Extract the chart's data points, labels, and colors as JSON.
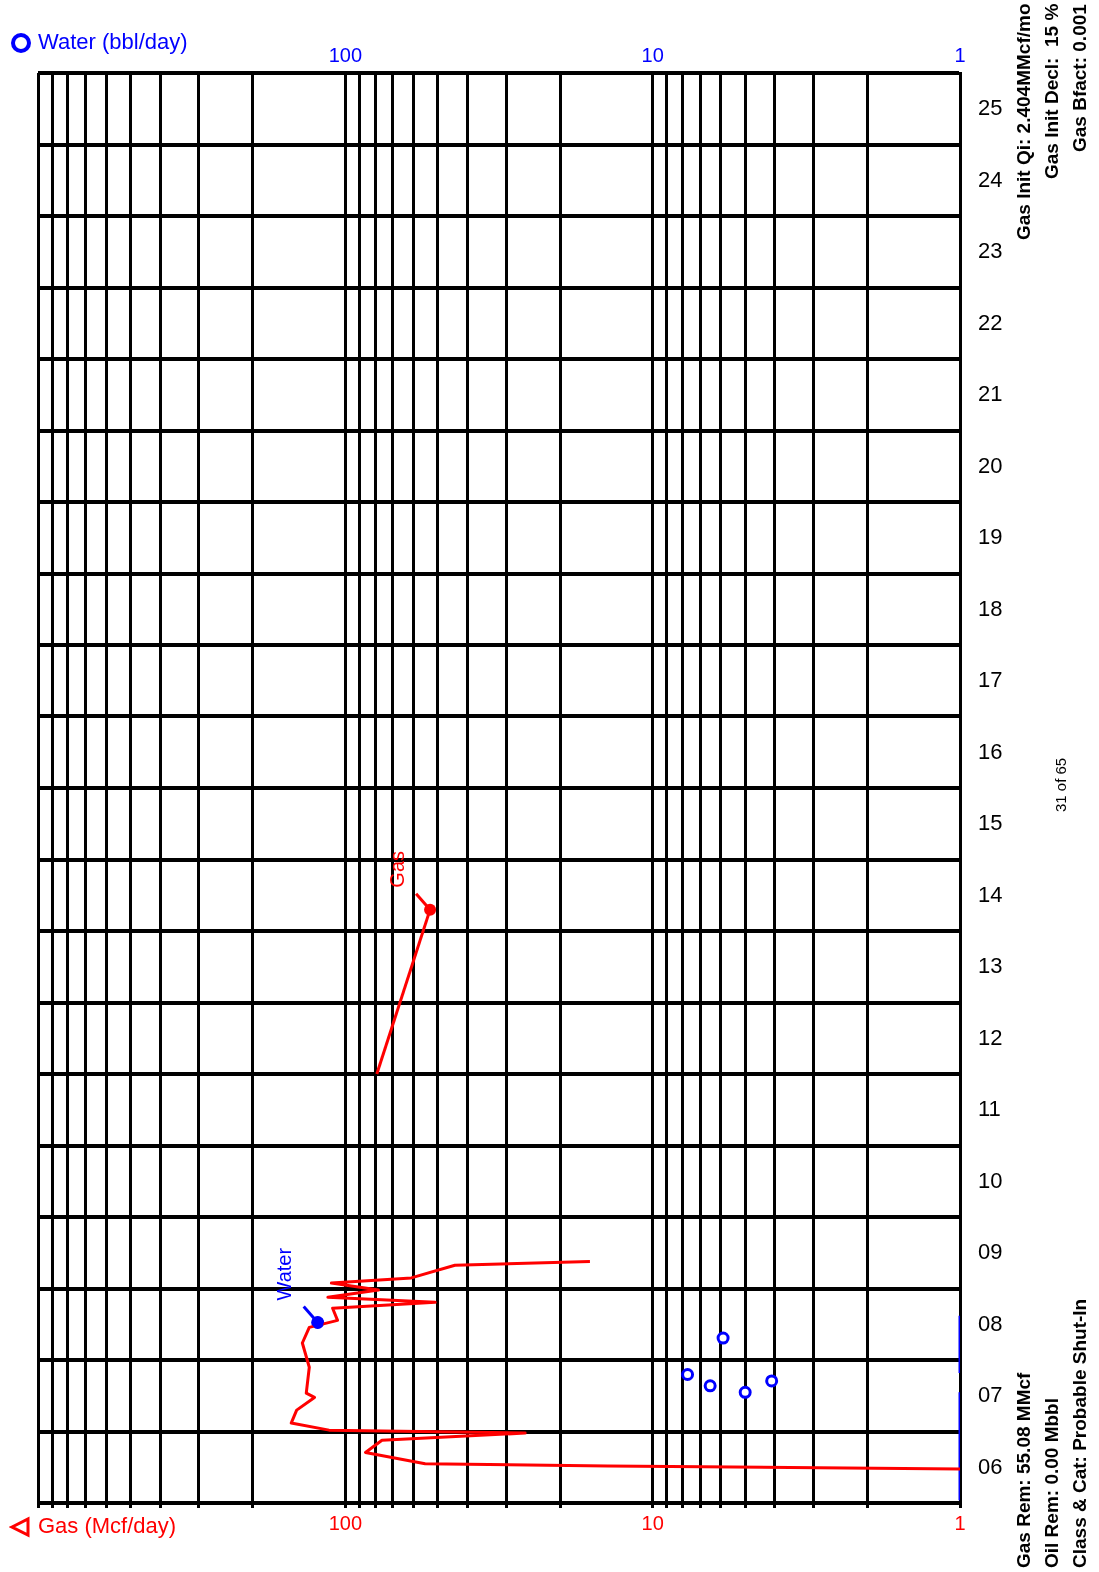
{
  "chart_data": {
    "type": "line",
    "orientation": "horizontal",
    "xlabel": "Gas (Mcf/day)",
    "x2label": "Water (bbl/day)",
    "ylim": [
      "2006-01-01",
      "2026-01-01"
    ],
    "yticks": [
      {
        "value": "2006-01-01",
        "label": null
      },
      {
        "value": "2006-07-01",
        "label": "06"
      },
      {
        "value": "2007-01-01",
        "label": null
      },
      {
        "value": "2007-07-01",
        "label": "07"
      },
      {
        "value": "2008-01-01",
        "label": null
      },
      {
        "value": "2008-07-01",
        "label": "08"
      },
      {
        "value": "2009-01-01",
        "label": null
      },
      {
        "value": "2009-07-01",
        "label": "09"
      },
      {
        "value": "2010-01-01",
        "label": null
      },
      {
        "value": "2010-07-01",
        "label": "10"
      },
      {
        "value": "2011-01-01",
        "label": null
      },
      {
        "value": "2011-07-01",
        "label": "11"
      },
      {
        "value": "2012-01-01",
        "label": null
      },
      {
        "value": "2012-07-01",
        "label": "12"
      },
      {
        "value": "2013-01-01",
        "label": null
      },
      {
        "value": "2013-07-01",
        "label": "13"
      },
      {
        "value": "2014-01-01",
        "label": null
      },
      {
        "value": "2014-07-01",
        "label": "14"
      },
      {
        "value": "2015-01-01",
        "label": null
      },
      {
        "value": "2015-07-01",
        "label": "15"
      },
      {
        "value": "2016-01-01",
        "label": null
      },
      {
        "value": "2016-07-01",
        "label": "16"
      },
      {
        "value": "2017-01-01",
        "label": null
      },
      {
        "value": "2017-07-01",
        "label": "17"
      },
      {
        "value": "2018-01-01",
        "label": null
      },
      {
        "value": "2018-07-01",
        "label": "18"
      },
      {
        "value": "2019-01-01",
        "label": null
      },
      {
        "value": "2019-07-01",
        "label": "19"
      },
      {
        "value": "2020-01-01",
        "label": null
      },
      {
        "value": "2020-07-01",
        "label": "20"
      },
      {
        "value": "2021-01-01",
        "label": null
      },
      {
        "value": "2021-07-01",
        "label": "21"
      },
      {
        "value": "2022-01-01",
        "label": null
      },
      {
        "value": "2022-07-01",
        "label": "22"
      },
      {
        "value": "2023-01-01",
        "label": null
      },
      {
        "value": "2023-07-01",
        "label": "23"
      },
      {
        "value": "2024-01-01",
        "label": null
      },
      {
        "value": "2024-07-01",
        "label": "24"
      },
      {
        "value": "2025-01-01",
        "label": null
      },
      {
        "value": "2025-07-01",
        "label": "25"
      },
      {
        "value": "2026-01-01",
        "label": null
      }
    ],
    "xlim": [
      1000,
      1
    ],
    "xticks": [
      {
        "value": 1000,
        "label": null
      },
      {
        "value": 900,
        "label": null
      },
      {
        "value": 800,
        "label": null
      },
      {
        "value": 700,
        "label": null
      },
      {
        "value": 600,
        "label": null
      },
      {
        "value": 500,
        "label": null
      },
      {
        "value": 400,
        "label": null
      },
      {
        "value": 300,
        "label": null
      },
      {
        "value": 200,
        "label": null
      },
      100,
      {
        "value": 90,
        "label": null
      },
      {
        "value": 80,
        "label": null
      },
      {
        "value": 70,
        "label": null
      },
      {
        "value": 60,
        "label": null
      },
      {
        "value": 50,
        "label": null
      },
      {
        "value": 40,
        "label": null
      },
      {
        "value": 30,
        "label": null
      },
      {
        "value": 20,
        "label": null
      },
      10,
      {
        "value": 9,
        "label": null
      },
      {
        "value": 8,
        "label": null
      },
      {
        "value": 7,
        "label": null
      },
      {
        "value": 6,
        "label": null
      },
      {
        "value": 5,
        "label": null
      },
      {
        "value": 4,
        "label": null
      },
      {
        "value": 3,
        "label": null
      },
      {
        "value": 2,
        "label": null
      },
      1
    ],
    "log": "x",
    "grid": true,
    "series": [
      {
        "color": "#ff0000",
        "x": [
          "2006-06-24",
          "2006-07-09",
          "2006-07-20",
          "2006-09-16",
          "2006-11-17",
          "2006-12-24",
          "2007-01-08",
          "2007-02-13",
          "2007-04-20",
          "2007-06-24",
          "2007-07-16",
          "2007-11-25",
          "2008-03-28",
          "2008-06-16",
          "2008-07-22",
          "2008-09-22",
          "2008-10-22",
          "2008-11-17",
          "2008-12-24",
          "2009-01-29",
          "2009-02-24",
          "2009-04-30",
          "2009-05-19"
        ],
        "values": [
          1.0,
          14,
          55,
          86,
          76,
          26,
          113,
          150,
          144,
          126,
          134,
          131,
          138,
          131,
          106,
          110,
          51,
          114,
          78,
          111,
          61,
          44,
          16
        ]
      },
      {
        "color": "#ff0000",
        "x": [
          "2012-01-01",
          "2014-04-20"
        ],
        "values": [
          79,
          53
        ]
      },
      {
        "type": "scatter",
        "marker": "circle",
        "color": "#0000ff",
        "x": [
          "2007-07-20",
          "2007-08-22",
          "2007-09-16",
          "2007-10-19",
          "2008-04-22",
          "2008-07-11"
        ],
        "values": [
          5.0,
          6.5,
          4.1,
          7.7,
          5.9,
          123
        ]
      },
      {
        "type": "line",
        "color": "#0000ff",
        "x": [
          "2006-01-15",
          "2007-07-20",
          "2007-07-24",
          "2007-10-27",
          "2008-08-14"
        ],
        "values": [
          1,
          1,
          null,
          1,
          1
        ]
      }
    ],
    "annotations": [
      "Gas Init Qi: 2.404MMcf/mo",
      "Gas Init Decl:  15 %",
      "Gas Bfact: 0.001",
      "Gas Rem: 55.08 MMcf",
      "Oil Rem: 0.00 Mbbl",
      "Class & Cat: Probable Shut-In",
      "31 of 65",
      "100",
      "10",
      "1",
      {
        "text": "Gas",
        "x": 53,
        "y": "2014-04-20"
      },
      {
        "text": "Water",
        "x": 123,
        "y": "2008-07-11"
      }
    ]
  }
}
